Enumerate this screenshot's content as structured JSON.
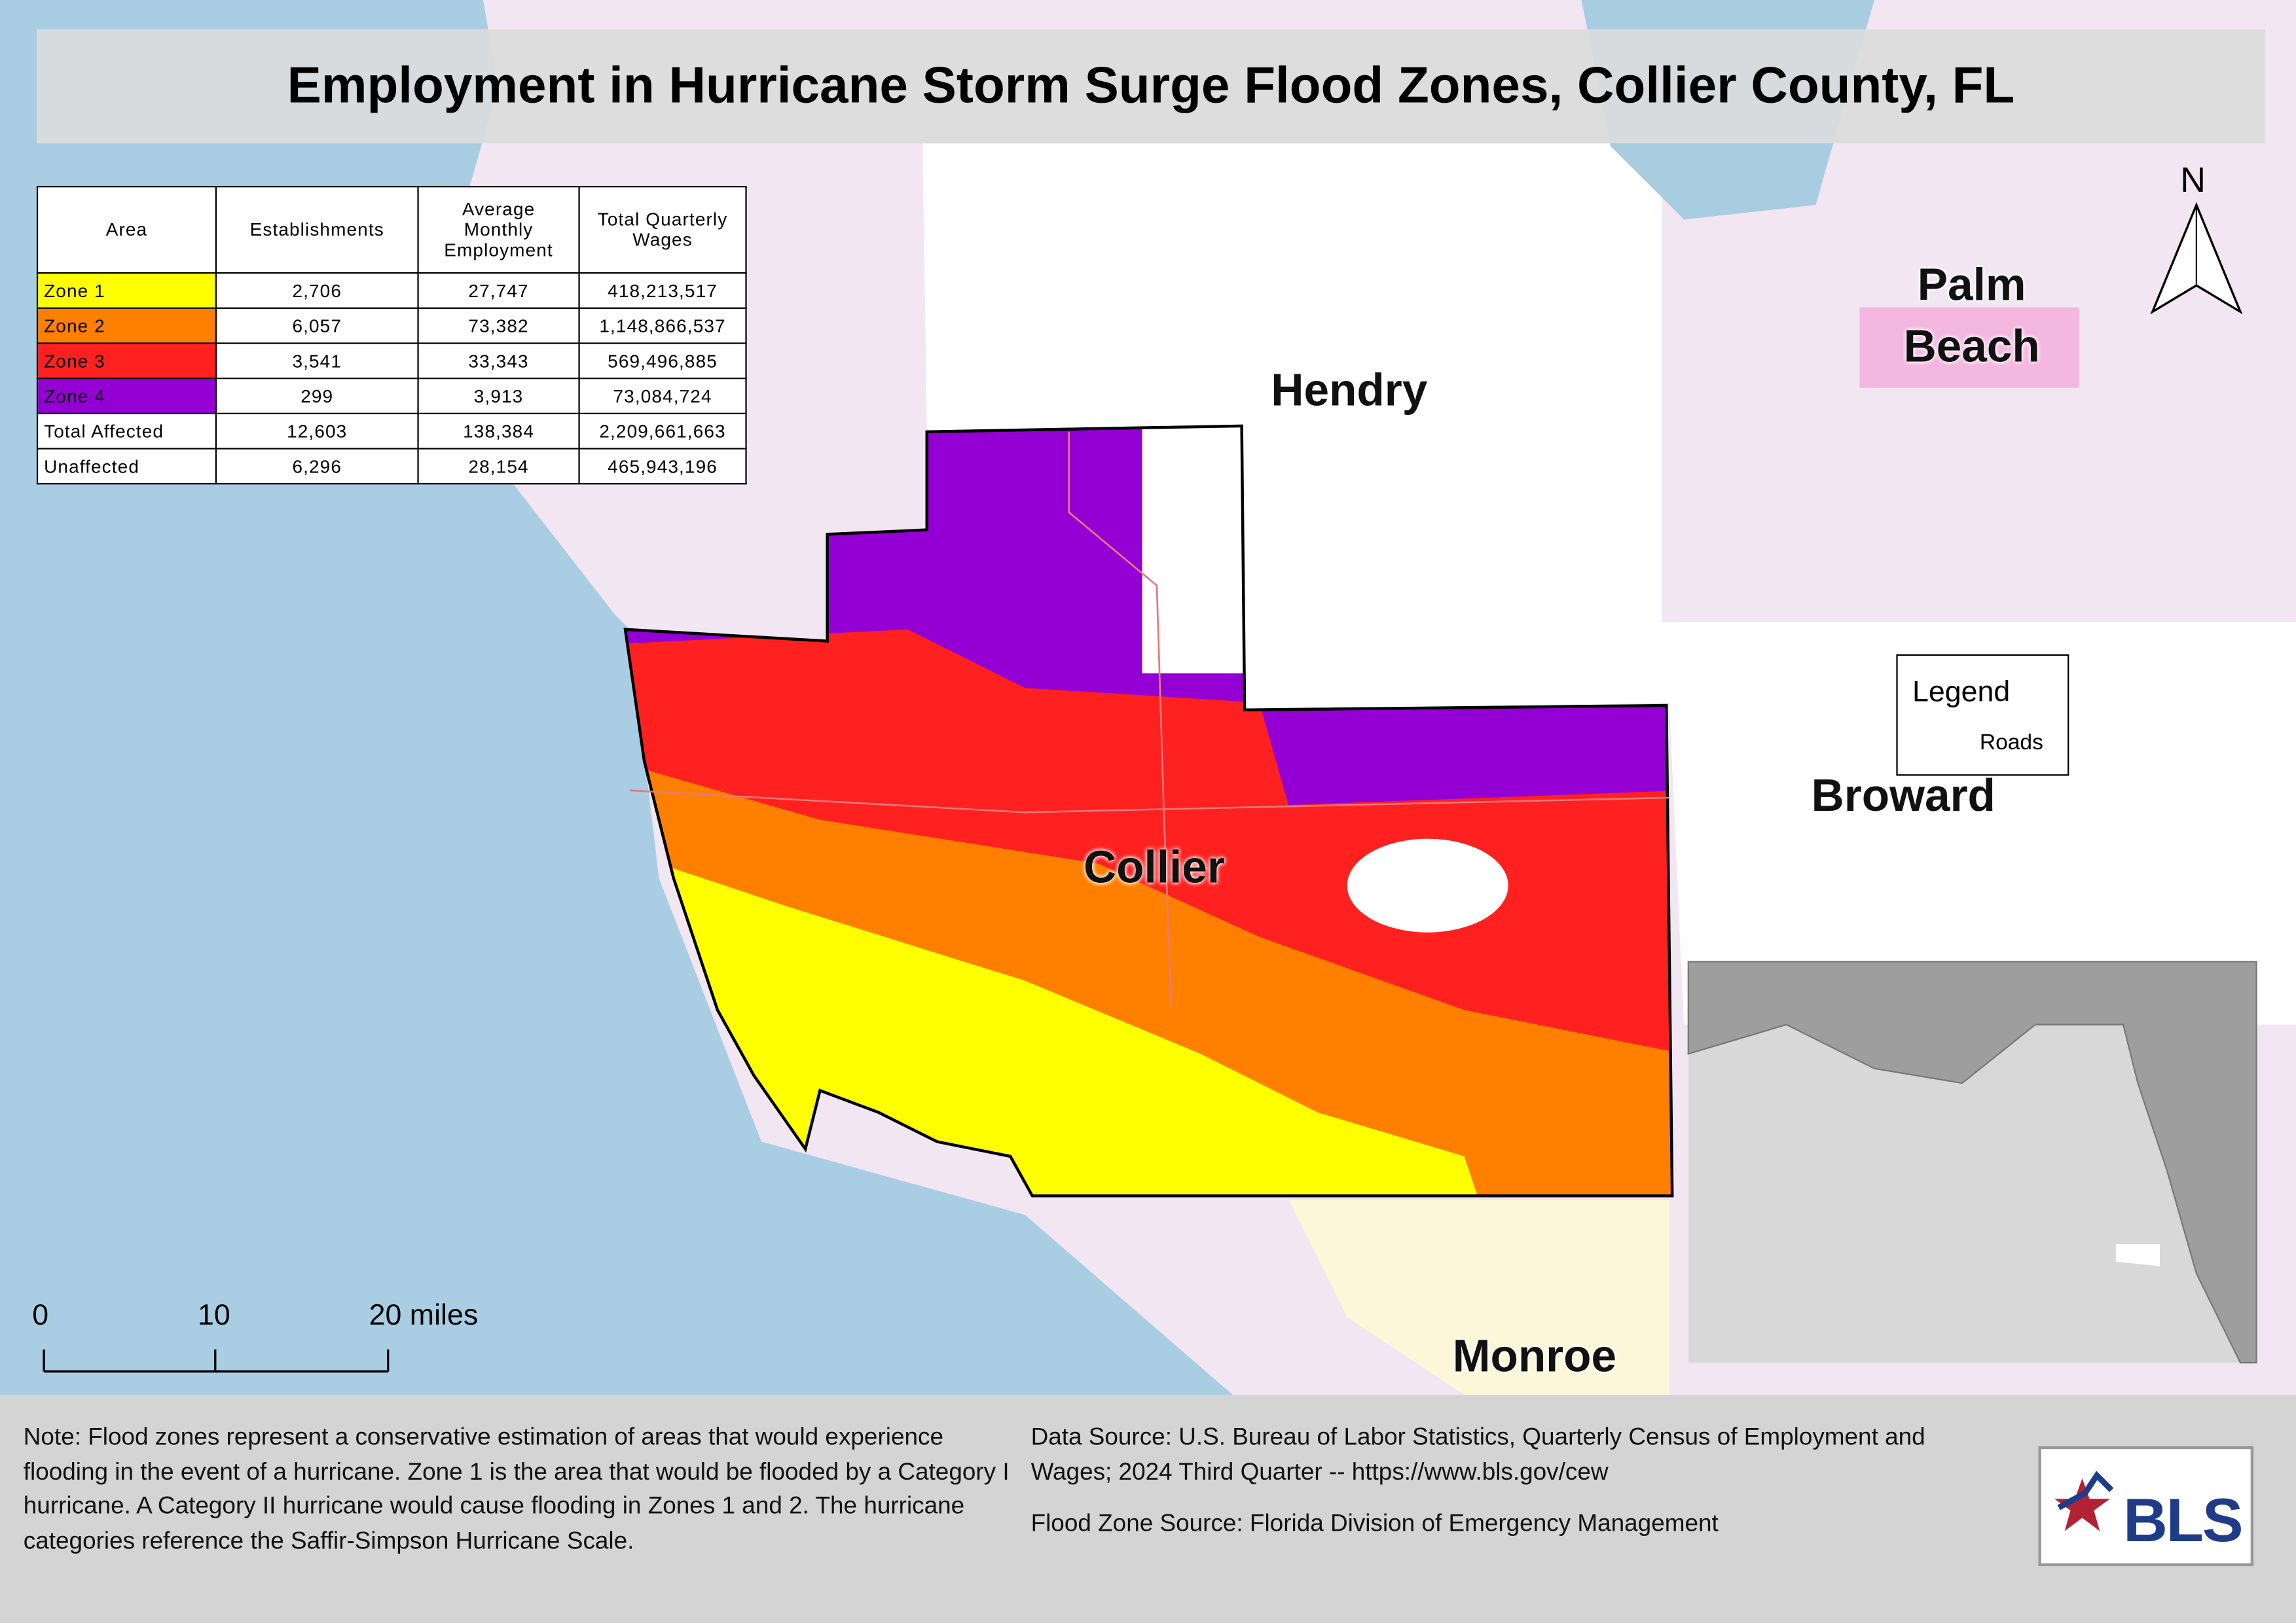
{
  "title": "Employment in Hurricane Storm Surge Flood Zones, Collier County, FL",
  "table": {
    "header": [
      "Area",
      "Establishments",
      "Average Monthly Employment",
      "Total Quarterly Wages"
    ],
    "rows": [
      [
        "Zone 1",
        "2,706",
        "27,747",
        "418,213,517"
      ],
      [
        "Zone 2",
        "6,057",
        "73,382",
        "1,148,866,537"
      ],
      [
        "Zone 3",
        "3,541",
        "33,343",
        "569,496,885"
      ],
      [
        "Zone 4",
        "299",
        "3,913",
        "73,084,724"
      ],
      [
        "Total Affected",
        "12,603",
        "138,384",
        "2,209,661,663"
      ],
      [
        "Unaffected",
        "6,296",
        "28,154",
        "465,943,196"
      ]
    ]
  },
  "map_labels": {
    "hendry": "Hendry",
    "palm_beach": [
      "Palm",
      "Beach"
    ],
    "broward": "Broward",
    "collier": "Collier",
    "monroe": "Monroe"
  },
  "north_arrow": "N",
  "legend": {
    "title": "Legend",
    "items": [
      "Roads"
    ]
  },
  "scale_bar": [
    "0",
    "10",
    "20 miles"
  ],
  "note": "Note: Flood zones represent a conservative estimation of areas that would experience flooding in the event of a hurricane. Zone 1 is the area that would be flooded by a Category I hurricane. A Category II hurricane would cause flooding in Zones 1 and 2. The hurricane categories reference the Saffir-Simpson Hurricane Scale.",
  "data_source": "Data Source: U.S. Bureau of Labor Statistics, Quarterly Census of Employment and Wages; 2024 Third Quarter -- https://www.bls.gov/cew",
  "flood_zone_source": "Flood Zone Source: Florida Division of Emergency Management",
  "logo": "BLS"
}
